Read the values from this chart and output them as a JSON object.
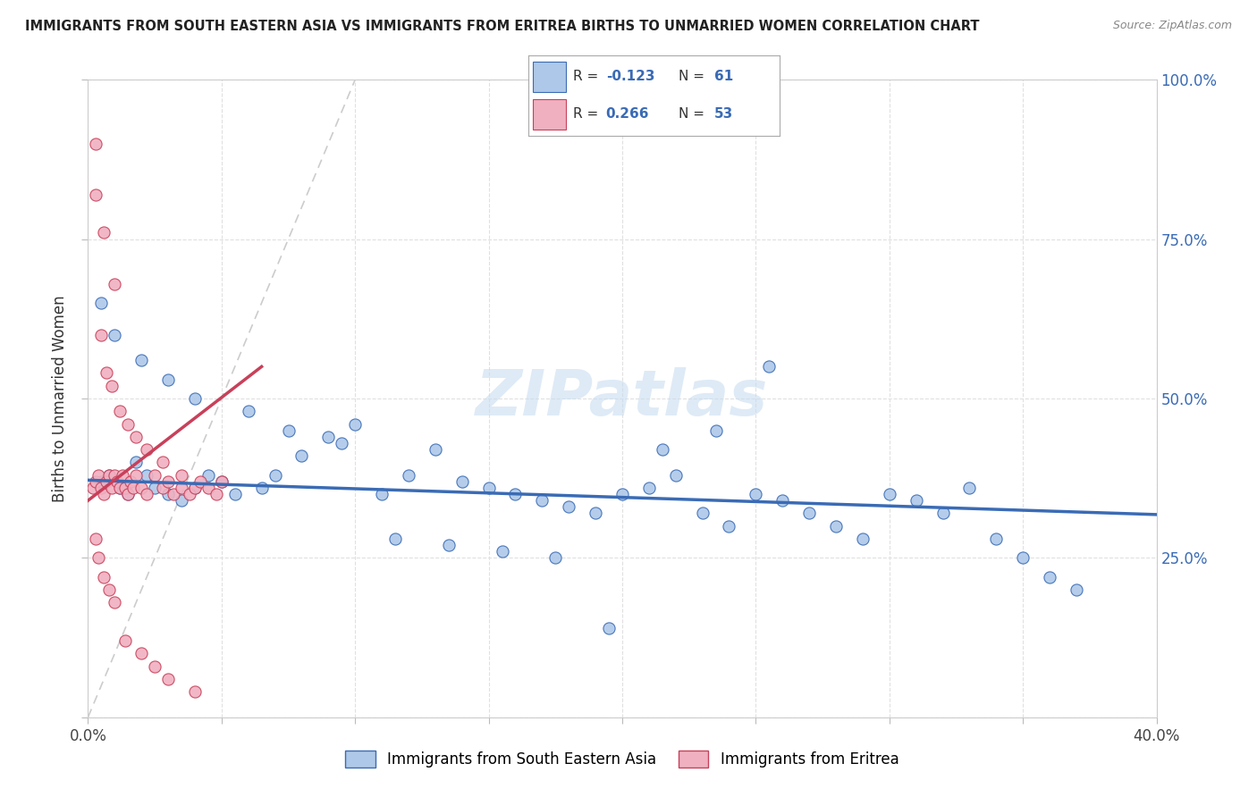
{
  "title": "IMMIGRANTS FROM SOUTH EASTERN ASIA VS IMMIGRANTS FROM ERITREA BIRTHS TO UNMARRIED WOMEN CORRELATION CHART",
  "source": "Source: ZipAtlas.com",
  "xmin": 0.0,
  "xmax": 0.4,
  "ymin": 0.0,
  "ymax": 1.0,
  "legend_label1": "Immigrants from South Eastern Asia",
  "legend_label2": "Immigrants from Eritrea",
  "R1": -0.123,
  "N1": 61,
  "R2": 0.266,
  "N2": 53,
  "color_blue": "#adc8e8",
  "color_pink": "#f0b0c0",
  "trendline_blue": "#3a6bb5",
  "trendline_pink": "#c8405a",
  "diagonal_color": "#cccccc",
  "background_color": "#ffffff",
  "blue_trend_start_y": 0.372,
  "blue_trend_end_y": 0.318,
  "pink_trend_x0": 0.0,
  "pink_trend_y0": 0.34,
  "pink_trend_x1": 0.065,
  "pink_trend_y1": 0.55,
  "blue_x": [
    0.005,
    0.008,
    0.012,
    0.015,
    0.018,
    0.022,
    0.025,
    0.03,
    0.035,
    0.04,
    0.045,
    0.05,
    0.055,
    0.065,
    0.07,
    0.08,
    0.09,
    0.1,
    0.11,
    0.12,
    0.13,
    0.14,
    0.15,
    0.16,
    0.17,
    0.18,
    0.19,
    0.2,
    0.21,
    0.22,
    0.23,
    0.24,
    0.25,
    0.26,
    0.27,
    0.28,
    0.29,
    0.3,
    0.31,
    0.32,
    0.33,
    0.34,
    0.35,
    0.36,
    0.37,
    0.005,
    0.01,
    0.02,
    0.03,
    0.04,
    0.06,
    0.075,
    0.095,
    0.115,
    0.135,
    0.155,
    0.175,
    0.195,
    0.215,
    0.235,
    0.255
  ],
  "blue_y": [
    0.37,
    0.38,
    0.36,
    0.35,
    0.4,
    0.38,
    0.36,
    0.35,
    0.34,
    0.36,
    0.38,
    0.37,
    0.35,
    0.36,
    0.38,
    0.41,
    0.44,
    0.46,
    0.35,
    0.38,
    0.42,
    0.37,
    0.36,
    0.35,
    0.34,
    0.33,
    0.32,
    0.35,
    0.36,
    0.38,
    0.32,
    0.3,
    0.35,
    0.34,
    0.32,
    0.3,
    0.28,
    0.35,
    0.34,
    0.32,
    0.36,
    0.28,
    0.25,
    0.22,
    0.2,
    0.65,
    0.6,
    0.56,
    0.53,
    0.5,
    0.48,
    0.45,
    0.43,
    0.28,
    0.27,
    0.26,
    0.25,
    0.14,
    0.42,
    0.45,
    0.55
  ],
  "pink_x": [
    0.002,
    0.003,
    0.004,
    0.005,
    0.006,
    0.007,
    0.008,
    0.009,
    0.01,
    0.011,
    0.012,
    0.013,
    0.014,
    0.015,
    0.016,
    0.017,
    0.018,
    0.02,
    0.022,
    0.025,
    0.028,
    0.03,
    0.032,
    0.035,
    0.038,
    0.04,
    0.042,
    0.045,
    0.048,
    0.05,
    0.003,
    0.005,
    0.007,
    0.009,
    0.012,
    0.015,
    0.018,
    0.022,
    0.028,
    0.035,
    0.003,
    0.004,
    0.006,
    0.008,
    0.01,
    0.014,
    0.02,
    0.025,
    0.03,
    0.04,
    0.003,
    0.006,
    0.01
  ],
  "pink_y": [
    0.36,
    0.37,
    0.38,
    0.36,
    0.35,
    0.37,
    0.38,
    0.36,
    0.38,
    0.37,
    0.36,
    0.38,
    0.36,
    0.35,
    0.37,
    0.36,
    0.38,
    0.36,
    0.35,
    0.38,
    0.36,
    0.37,
    0.35,
    0.36,
    0.35,
    0.36,
    0.37,
    0.36,
    0.35,
    0.37,
    0.82,
    0.6,
    0.54,
    0.52,
    0.48,
    0.46,
    0.44,
    0.42,
    0.4,
    0.38,
    0.28,
    0.25,
    0.22,
    0.2,
    0.18,
    0.12,
    0.1,
    0.08,
    0.06,
    0.04,
    0.9,
    0.76,
    0.68
  ]
}
